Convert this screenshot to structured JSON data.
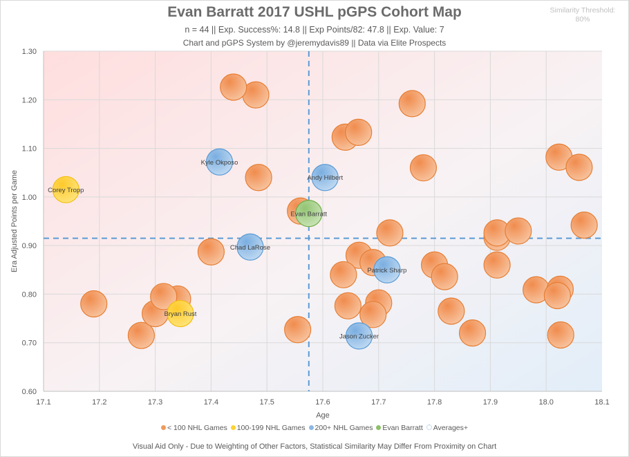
{
  "header": {
    "title": "Evan Barratt 2017 USHL pGPS Cohort Map",
    "stats_line": "n = 44 || Exp. Success%: 14.8 || Exp Points/82: 47.8 || Exp. Value: 7",
    "credit_line": "Chart and pGPS System by @jeremydavis89 || Data via Elite Prospects",
    "similarity_label": "Similarity Threshold:",
    "similarity_value": "80%"
  },
  "footer": {
    "note": "Visual Aid Only - Due to Weighting of Other Factors, Statistical Similarity May Differ From Proximity on Chart"
  },
  "colors": {
    "lt100": "#f0995b",
    "lt100_stroke": "#e67e34",
    "g100_199": "#ffd233",
    "g100_199_stroke": "#f2be0f",
    "g200": "#8db8e3",
    "g200_stroke": "#5b9bd5",
    "subject": "#a9d18e",
    "subject_stroke": "#70ad47",
    "avg_line": "#5b9bd5"
  },
  "chart_data": {
    "type": "scatter",
    "title": "Evan Barratt 2017 USHL pGPS Cohort Map",
    "xlabel": "Age",
    "ylabel": "Era Adjusted Points per Game",
    "xlim": [
      17.1,
      18.1
    ],
    "ylim": [
      0.6,
      1.3
    ],
    "xticks": [
      "17.1",
      "17.2",
      "17.3",
      "17.4",
      "17.5",
      "17.6",
      "17.7",
      "17.8",
      "17.9",
      "18.0",
      "18.1"
    ],
    "yticks": [
      "0.60",
      "0.70",
      "0.80",
      "0.90",
      "1.00",
      "1.10",
      "1.20",
      "1.30"
    ],
    "grid": true,
    "legend_position": "bottom",
    "legend": [
      {
        "key": "lt100",
        "label": "< 100 NHL Games"
      },
      {
        "key": "g100_199",
        "label": "100-199 NHL Games"
      },
      {
        "key": "g200",
        "label": "200+ NHL Games"
      },
      {
        "key": "subject",
        "label": "Evan Barratt"
      },
      {
        "key": "avg",
        "label": "Averages+"
      }
    ],
    "averages": {
      "age": 17.575,
      "ppg": 0.915
    },
    "points": [
      {
        "x": 17.14,
        "y": 1.015,
        "group": "g100_199",
        "label": "Corey Tropp"
      },
      {
        "x": 17.19,
        "y": 0.78,
        "group": "lt100",
        "label": ""
      },
      {
        "x": 17.275,
        "y": 0.715,
        "group": "lt100",
        "label": ""
      },
      {
        "x": 17.3,
        "y": 0.76,
        "group": "lt100",
        "label": ""
      },
      {
        "x": 17.34,
        "y": 0.79,
        "group": "lt100",
        "label": ""
      },
      {
        "x": 17.315,
        "y": 0.795,
        "group": "lt100",
        "label": ""
      },
      {
        "x": 17.345,
        "y": 0.76,
        "group": "g100_199",
        "label": "Bryan Rust"
      },
      {
        "x": 17.4,
        "y": 0.887,
        "group": "lt100",
        "label": ""
      },
      {
        "x": 17.415,
        "y": 1.072,
        "group": "g200",
        "label": "Kyle Okposo"
      },
      {
        "x": 17.48,
        "y": 1.21,
        "group": "lt100",
        "label": ""
      },
      {
        "x": 17.44,
        "y": 1.226,
        "group": "lt100",
        "label": ""
      },
      {
        "x": 17.485,
        "y": 1.04,
        "group": "lt100",
        "label": ""
      },
      {
        "x": 17.47,
        "y": 0.897,
        "group": "g200",
        "label": "Chad LaRose"
      },
      {
        "x": 17.555,
        "y": 0.727,
        "group": "lt100",
        "label": ""
      },
      {
        "x": 17.56,
        "y": 0.971,
        "group": "lt100",
        "label": ""
      },
      {
        "x": 17.604,
        "y": 1.04,
        "group": "g200",
        "label": "Andy Hilbert"
      },
      {
        "x": 17.64,
        "y": 1.123,
        "group": "lt100",
        "label": ""
      },
      {
        "x": 17.664,
        "y": 1.133,
        "group": "lt100",
        "label": ""
      },
      {
        "x": 17.76,
        "y": 1.192,
        "group": "lt100",
        "label": ""
      },
      {
        "x": 17.78,
        "y": 1.06,
        "group": "lt100",
        "label": ""
      },
      {
        "x": 17.72,
        "y": 0.926,
        "group": "lt100",
        "label": ""
      },
      {
        "x": 17.665,
        "y": 0.88,
        "group": "lt100",
        "label": ""
      },
      {
        "x": 17.637,
        "y": 0.84,
        "group": "lt100",
        "label": ""
      },
      {
        "x": 17.69,
        "y": 0.865,
        "group": "lt100",
        "label": ""
      },
      {
        "x": 17.715,
        "y": 0.85,
        "group": "g200",
        "label": "Patrick Sharp"
      },
      {
        "x": 17.645,
        "y": 0.776,
        "group": "lt100",
        "label": ""
      },
      {
        "x": 17.7,
        "y": 0.782,
        "group": "lt100",
        "label": ""
      },
      {
        "x": 17.69,
        "y": 0.758,
        "group": "lt100",
        "label": ""
      },
      {
        "x": 17.665,
        "y": 0.714,
        "group": "g200",
        "label": "Jason Zucker"
      },
      {
        "x": 17.8,
        "y": 0.86,
        "group": "lt100",
        "label": ""
      },
      {
        "x": 17.818,
        "y": 0.836,
        "group": "lt100",
        "label": ""
      },
      {
        "x": 17.83,
        "y": 0.765,
        "group": "lt100",
        "label": ""
      },
      {
        "x": 17.868,
        "y": 0.72,
        "group": "lt100",
        "label": ""
      },
      {
        "x": 17.912,
        "y": 0.917,
        "group": "lt100",
        "label": ""
      },
      {
        "x": 17.912,
        "y": 0.926,
        "group": "lt100",
        "label": ""
      },
      {
        "x": 17.95,
        "y": 0.93,
        "group": "lt100",
        "label": ""
      },
      {
        "x": 17.912,
        "y": 0.86,
        "group": "lt100",
        "label": ""
      },
      {
        "x": 17.982,
        "y": 0.809,
        "group": "lt100",
        "label": ""
      },
      {
        "x": 18.025,
        "y": 0.81,
        "group": "lt100",
        "label": ""
      },
      {
        "x": 18.02,
        "y": 0.797,
        "group": "lt100",
        "label": ""
      },
      {
        "x": 18.026,
        "y": 0.716,
        "group": "lt100",
        "label": ""
      },
      {
        "x": 18.023,
        "y": 1.082,
        "group": "lt100",
        "label": ""
      },
      {
        "x": 18.059,
        "y": 1.061,
        "group": "lt100",
        "label": ""
      },
      {
        "x": 18.068,
        "y": 0.942,
        "group": "lt100",
        "label": ""
      },
      {
        "x": 17.575,
        "y": 0.966,
        "group": "subject",
        "label": "Evan Barratt"
      }
    ]
  }
}
